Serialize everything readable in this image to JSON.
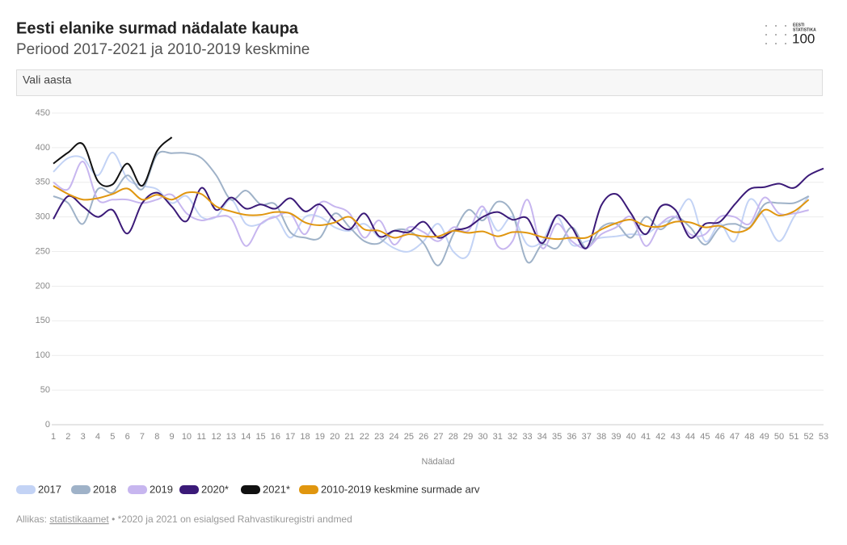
{
  "chart_data": {
    "type": "line",
    "title": "Eesti elanike surmad nädalate kaupa",
    "subtitle": "Periood 2017-2021 ja 2010-2019 keskmine",
    "dropdown": "Vali aasta",
    "logo": [
      "EESTI",
      "STATISTIKA",
      "100"
    ],
    "x_label": "Nädalad",
    "source_prefix": "Allikas:",
    "source_link": "statistikaamet",
    "source_note": "• *2020 ja 2021 on esialgsed Rahvastikuregistri andmed",
    "categories": [
      "1",
      "2",
      "3",
      "4",
      "5",
      "6",
      "7",
      "8",
      "9",
      "10",
      "11",
      "12",
      "13",
      "14",
      "15",
      "16",
      "17",
      "18",
      "19",
      "20",
      "21",
      "22",
      "23",
      "24",
      "25",
      "26",
      "27",
      "28",
      "29",
      "30",
      "31",
      "32",
      "33",
      "34",
      "35",
      "36",
      "37",
      "38",
      "39",
      "40",
      "41",
      "42",
      "43",
      "44",
      "45",
      "46",
      "47",
      "48",
      "49",
      "50",
      "51",
      "52",
      "53"
    ],
    "ylim": [
      0,
      450
    ],
    "yticks": [
      0,
      50,
      100,
      150,
      200,
      250,
      300,
      350,
      400,
      450
    ],
    "grid": true,
    "series": [
      {
        "name": "2017",
        "color": "#c3d3f5",
        "values": [
          365,
          385,
          385,
          360,
          393,
          355,
          345,
          340,
          320,
          330,
          300,
          300,
          325,
          290,
          290,
          300,
          270,
          300,
          300,
          285,
          280,
          290,
          270,
          255,
          250,
          265,
          290,
          250,
          245,
          310,
          280,
          300,
          260,
          265,
          300,
          260,
          265,
          270,
          272,
          275,
          275,
          290,
          300,
          325,
          265,
          290,
          265,
          325,
          300,
          265,
          300,
          330,
          null
        ]
      },
      {
        "name": "2018",
        "color": "#9fb2c8",
        "values": [
          330,
          320,
          290,
          340,
          335,
          360,
          340,
          390,
          392,
          392,
          385,
          360,
          325,
          338,
          318,
          318,
          278,
          270,
          270,
          305,
          285,
          265,
          262,
          280,
          280,
          262,
          230,
          275,
          310,
          295,
          322,
          305,
          235,
          260,
          255,
          285,
          255,
          285,
          290,
          270,
          300,
          282,
          300,
          285,
          260,
          285,
          290,
          285,
          318,
          320,
          320,
          330,
          null
        ]
      },
      {
        "name": "2019",
        "color": "#c7b6ef",
        "values": [
          350,
          340,
          380,
          325,
          325,
          325,
          320,
          325,
          332,
          305,
          295,
          300,
          298,
          258,
          290,
          300,
          305,
          275,
          320,
          315,
          305,
          270,
          295,
          260,
          285,
          278,
          265,
          285,
          280,
          315,
          258,
          265,
          325,
          255,
          290,
          265,
          255,
          275,
          285,
          300,
          258,
          290,
          300,
          275,
          275,
          300,
          300,
          290,
          328,
          305,
          305,
          310,
          null
        ]
      },
      {
        "name": "2020*",
        "color": "#3b1a78",
        "values": [
          297,
          330,
          315,
          300,
          310,
          276,
          320,
          335,
          315,
          294,
          342,
          310,
          328,
          312,
          318,
          312,
          327,
          308,
          318,
          295,
          282,
          305,
          272,
          280,
          278,
          293,
          270,
          280,
          285,
          300,
          307,
          296,
          298,
          262,
          302,
          285,
          255,
          317,
          333,
          305,
          275,
          315,
          310,
          270,
          290,
          293,
          318,
          340,
          343,
          348,
          342,
          360,
          370
        ]
      },
      {
        "name": "2021*",
        "color": "#111111",
        "values": [
          377,
          393,
          405,
          352,
          347,
          377,
          345,
          395,
          415,
          null,
          null,
          null,
          null,
          null,
          null,
          null,
          null,
          null,
          null,
          null,
          null,
          null,
          null,
          null,
          null,
          null,
          null,
          null,
          null,
          null,
          null,
          null,
          null,
          null,
          null,
          null,
          null,
          null,
          null,
          null,
          null,
          null,
          null,
          null,
          null,
          null,
          null,
          null,
          null,
          null,
          null,
          null,
          null
        ]
      },
      {
        "name": "2010-2019 keskmine surmade arv",
        "color": "#e0960f",
        "values": [
          345,
          333,
          325,
          327,
          333,
          341,
          325,
          332,
          325,
          335,
          333,
          315,
          308,
          303,
          303,
          307,
          305,
          292,
          288,
          292,
          300,
          282,
          280,
          270,
          275,
          272,
          272,
          280,
          277,
          279,
          272,
          278,
          277,
          271,
          268,
          270,
          270,
          282,
          291,
          296,
          287,
          286,
          293,
          292,
          285,
          287,
          278,
          284,
          310,
          302,
          308,
          325,
          null
        ]
      }
    ]
  }
}
